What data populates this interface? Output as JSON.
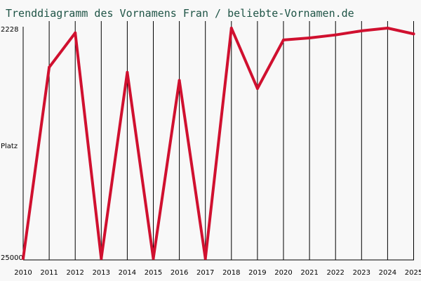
{
  "chart_data": {
    "type": "line",
    "title": "Trenddiagramm des Vornamens Fran / beliebte-Vornamen.de",
    "ylabel": "Platz",
    "y_tick_labels": [
      "2228",
      "25000"
    ],
    "x": [
      "2010",
      "2011",
      "2012",
      "2013",
      "2014",
      "2015",
      "2016",
      "2017",
      "2018",
      "2019",
      "2020",
      "2021",
      "2022",
      "2023",
      "2024",
      "2025"
    ],
    "series": [
      {
        "values": [
          25000,
          6100,
          2700,
          25000,
          6600,
          25000,
          7400,
          25000,
          2228,
          8200,
          3400,
          3200,
          2900,
          2500,
          2228,
          2800
        ]
      }
    ],
    "ylim": [
      2228,
      25000
    ],
    "y_inverted": true,
    "grid": "vertical",
    "line_color": "#d0102f"
  }
}
